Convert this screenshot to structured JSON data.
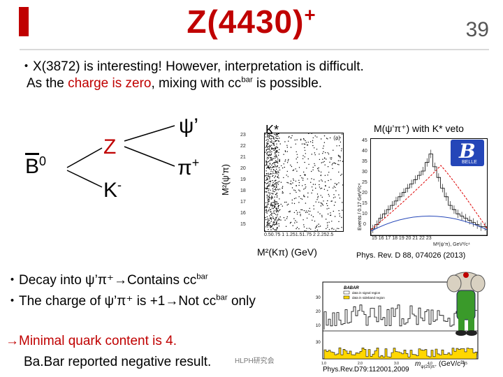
{
  "slide": {
    "title_main": "Z(4430)",
    "title_sup": "+",
    "number": "39"
  },
  "intro": {
    "line1": "・X(3872) is interesting! However, interpretation is difficult.",
    "line2_pre": "As the ",
    "line2_red": "charge is zero",
    "line2_post": ", mixing with cc",
    "line2_sup": "bar",
    "line2_end": " is possible."
  },
  "diagram": {
    "b0": "B",
    "b0_sup": "0",
    "z": "Z",
    "kminus": "K",
    "kminus_sup": "-",
    "psiprime": "ψ’",
    "piplus": "π",
    "piplus_sup": "+"
  },
  "scatter": {
    "kstar": "K*",
    "ylabel": "M²(ψ’π)",
    "xlabel": "M²(Kπ) (GeV)",
    "panel_tag": "(a)",
    "y_ticks": [
      "23",
      "22",
      "21",
      "20",
      "19",
      "18",
      "17",
      "16",
      "15"
    ],
    "x_ticks": "0.50.75 1 1.251.51.75 2 2.252.5"
  },
  "histogram": {
    "title": "M(ψ’π⁺) with K* veto",
    "belle_b": "B",
    "belle_text": "BELLE",
    "ylabel": "Events / 0.17 GeV²/c⁴",
    "xlabel": "M²(ψ’π), GeV²/c⁴",
    "y_ticks": [
      "45",
      "40",
      "35",
      "30",
      "25",
      "20",
      "15",
      "10",
      "5",
      "0"
    ],
    "x_ticks": "15  16  17  18  19  20  21  22  23",
    "reference": "Phys. Rev. D 88, 074026 (2013)"
  },
  "bullets": {
    "decay_pre": "・Decay into ψ’π⁺→Contains cc",
    "decay_sup": "bar",
    "charge_pre": "・The charge of ψ’π⁺ is +1→Not cc",
    "charge_sup": "bar",
    "charge_post": " only",
    "minimal": "→Minimal quark content  is 4.",
    "babar": "Ba.Bar  reported negative result.",
    "tag": "HLPH研究会"
  },
  "babar_plot": {
    "panel_tag": "(b)",
    "legend_title": "BABAR",
    "legend1": "data in signal region",
    "legend2": "data in sideband region",
    "reference": "Phys.Rev.D79:112001,2009",
    "xlabel": "m",
    "xunit": "(GeV/c²)"
  },
  "colors": {
    "accent": "#c00000",
    "belle_blue": "#2446b8",
    "hist_fill": "#c9a0dc",
    "babar_yellow": "#ffd700"
  }
}
